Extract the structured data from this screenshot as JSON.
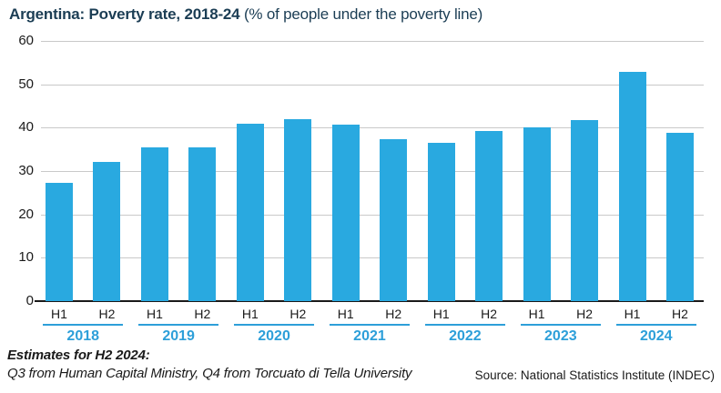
{
  "title": {
    "bold": "Argentina: Poverty rate, 2018-24",
    "regular": " (% of people under the poverty line)"
  },
  "chart_data": {
    "type": "bar",
    "title": "Argentina: Poverty rate, 2018-24",
    "subtitle": "(% of people under the poverty line)",
    "categories": [
      "H1 2018",
      "H2 2018",
      "H1 2019",
      "H2 2019",
      "H1 2020",
      "H2 2020",
      "H1 2021",
      "H2 2021",
      "H1 2022",
      "H2 2022",
      "H1 2023",
      "H2 2023",
      "H1 2024",
      "H2 2024"
    ],
    "tick_labels": [
      "H1",
      "H2",
      "H1",
      "H2",
      "H1",
      "H2",
      "H1",
      "H2",
      "H1",
      "H2",
      "H1",
      "H2",
      "H1",
      "H2"
    ],
    "year_labels": [
      "2018",
      "2019",
      "2020",
      "2021",
      "2022",
      "2023",
      "2024"
    ],
    "values": [
      27.3,
      32.0,
      35.4,
      35.5,
      40.9,
      42.0,
      40.6,
      37.3,
      36.5,
      39.2,
      40.1,
      41.7,
      52.9,
      38.9
    ],
    "ylim": [
      0,
      60
    ],
    "yticks": [
      0,
      10,
      20,
      30,
      40,
      50,
      60
    ],
    "grid": "horizontal",
    "legend": "none",
    "xlabel": "",
    "ylabel": ""
  },
  "footnote": {
    "line1": "Estimates for H2 2024:",
    "line2": "Q3 from Human Capital Ministry, Q4 from Torcuato di Tella University",
    "source": "Source: National Statistics Institute (INDEC)"
  },
  "colors": {
    "bar": "#29A9E0",
    "year": "#2D9FD9",
    "title": "#1B3D54",
    "grid": "#C9C9C9",
    "axis": "#1A1A1A",
    "text": "#1A1A1A"
  }
}
